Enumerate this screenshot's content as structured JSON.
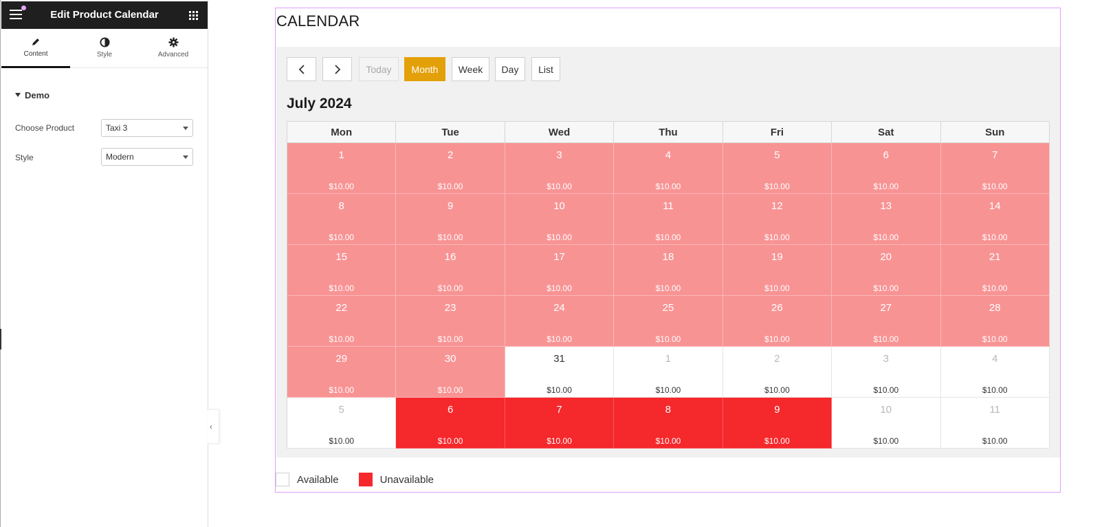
{
  "panel": {
    "title": "Edit Product Calendar",
    "tabs": [
      {
        "label": "Content",
        "icon": "pencil-icon"
      },
      {
        "label": "Style",
        "icon": "half-circle-icon"
      },
      {
        "label": "Advanced",
        "icon": "gear-icon"
      }
    ],
    "section": "Demo",
    "controls": [
      {
        "label": "Choose Product",
        "value": "Taxi 3"
      },
      {
        "label": "Style",
        "value": "Modern"
      }
    ],
    "collapse_glyph": "‹"
  },
  "widget": {
    "heading": "CALENDAR",
    "toolbar": {
      "prev_glyph": "‹",
      "next_glyph": "›",
      "today": "Today",
      "month": "Month",
      "week": "Week",
      "day": "Day",
      "list": "List",
      "active_view": "month"
    },
    "month_title": "July 2024",
    "weekdays": [
      "Mon",
      "Tue",
      "Wed",
      "Thu",
      "Fri",
      "Sat",
      "Sun"
    ],
    "weeks": [
      [
        {
          "day": "1",
          "price": "$10.00",
          "status": "booked"
        },
        {
          "day": "2",
          "price": "$10.00",
          "status": "booked"
        },
        {
          "day": "3",
          "price": "$10.00",
          "status": "booked"
        },
        {
          "day": "4",
          "price": "$10.00",
          "status": "booked"
        },
        {
          "day": "5",
          "price": "$10.00",
          "status": "booked"
        },
        {
          "day": "6",
          "price": "$10.00",
          "status": "booked"
        },
        {
          "day": "7",
          "price": "$10.00",
          "status": "booked"
        }
      ],
      [
        {
          "day": "8",
          "price": "$10.00",
          "status": "booked"
        },
        {
          "day": "9",
          "price": "$10.00",
          "status": "booked"
        },
        {
          "day": "10",
          "price": "$10.00",
          "status": "booked"
        },
        {
          "day": "11",
          "price": "$10.00",
          "status": "booked"
        },
        {
          "day": "12",
          "price": "$10.00",
          "status": "booked"
        },
        {
          "day": "13",
          "price": "$10.00",
          "status": "booked"
        },
        {
          "day": "14",
          "price": "$10.00",
          "status": "booked"
        }
      ],
      [
        {
          "day": "15",
          "price": "$10.00",
          "status": "booked"
        },
        {
          "day": "16",
          "price": "$10.00",
          "status": "booked"
        },
        {
          "day": "17",
          "price": "$10.00",
          "status": "booked"
        },
        {
          "day": "18",
          "price": "$10.00",
          "status": "booked"
        },
        {
          "day": "19",
          "price": "$10.00",
          "status": "booked"
        },
        {
          "day": "20",
          "price": "$10.00",
          "status": "booked"
        },
        {
          "day": "21",
          "price": "$10.00",
          "status": "booked"
        }
      ],
      [
        {
          "day": "22",
          "price": "$10.00",
          "status": "booked"
        },
        {
          "day": "23",
          "price": "$10.00",
          "status": "booked"
        },
        {
          "day": "24",
          "price": "$10.00",
          "status": "booked"
        },
        {
          "day": "25",
          "price": "$10.00",
          "status": "booked"
        },
        {
          "day": "26",
          "price": "$10.00",
          "status": "booked"
        },
        {
          "day": "27",
          "price": "$10.00",
          "status": "booked"
        },
        {
          "day": "28",
          "price": "$10.00",
          "status": "booked"
        }
      ],
      [
        {
          "day": "29",
          "price": "$10.00",
          "status": "booked"
        },
        {
          "day": "30",
          "price": "$10.00",
          "status": "booked"
        },
        {
          "day": "31",
          "price": "$10.00",
          "status": "available"
        },
        {
          "day": "1",
          "price": "$10.00",
          "status": "other"
        },
        {
          "day": "2",
          "price": "$10.00",
          "status": "other"
        },
        {
          "day": "3",
          "price": "$10.00",
          "status": "other"
        },
        {
          "day": "4",
          "price": "$10.00",
          "status": "other"
        }
      ],
      [
        {
          "day": "5",
          "price": "$10.00",
          "status": "other"
        },
        {
          "day": "6",
          "price": "$10.00",
          "status": "unavailable"
        },
        {
          "day": "7",
          "price": "$10.00",
          "status": "unavailable"
        },
        {
          "day": "8",
          "price": "$10.00",
          "status": "unavailable"
        },
        {
          "day": "9",
          "price": "$10.00",
          "status": "unavailable"
        },
        {
          "day": "10",
          "price": "$10.00",
          "status": "other"
        },
        {
          "day": "11",
          "price": "$10.00",
          "status": "other"
        }
      ]
    ],
    "legend": [
      {
        "label": "Available",
        "color": "#ffffff"
      },
      {
        "label": "Unavailable",
        "color": "#f5282c"
      }
    ]
  },
  "colors": {
    "booked_bg": "#f89394",
    "unavailable_bg": "#f5282c",
    "accent": "#e3a008",
    "widget_outline": "#e09bff"
  }
}
